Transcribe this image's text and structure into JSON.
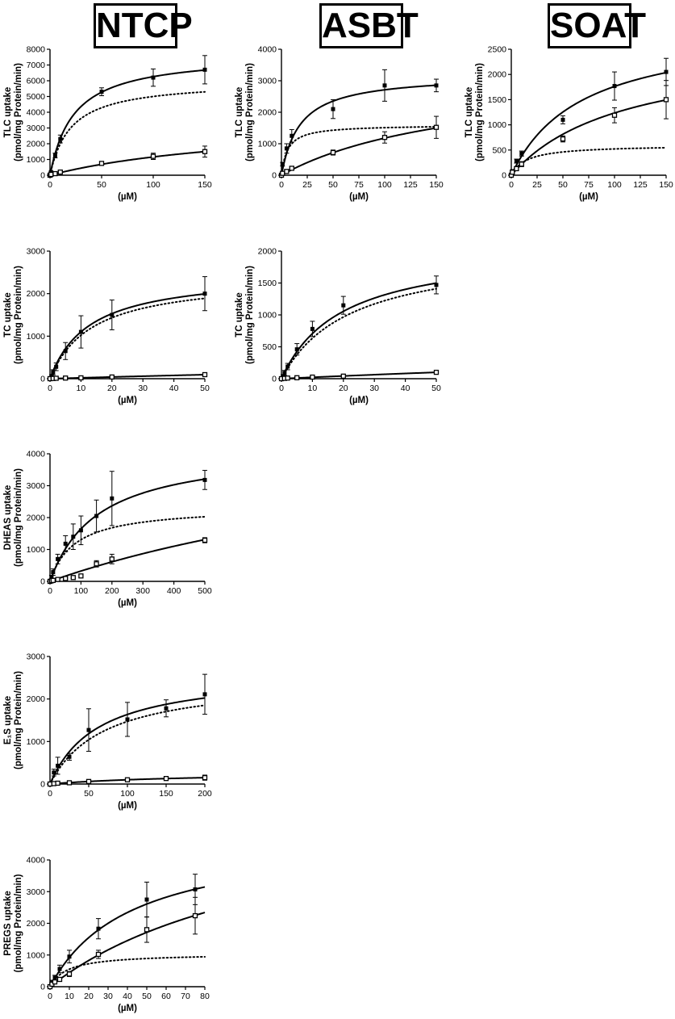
{
  "titles": [
    "NTCP",
    "ASBT",
    "SOAT"
  ],
  "chart_data": [
    {
      "type": "scatter",
      "group": "NTCP",
      "ylabel": "TLC uptake",
      "ylabel2": "(pmol/mg Protein/min)",
      "xlabel": "(µM)",
      "xlim": [
        0,
        150
      ],
      "ylim": [
        0,
        8000
      ],
      "xticks": [
        0,
        50,
        100,
        150
      ],
      "yticks": [
        0,
        1000,
        2000,
        3000,
        4000,
        5000,
        6000,
        7000,
        8000
      ],
      "series": [
        {
          "marker": "filled",
          "x": [
            0,
            1,
            5,
            10,
            50,
            100,
            150
          ],
          "y": [
            0,
            200,
            1250,
            2300,
            5300,
            6200,
            6700
          ],
          "err": [
            0,
            50,
            150,
            250,
            250,
            550,
            900
          ],
          "curve": "solid",
          "fit": {
            "vmax": 7700,
            "km": 23
          }
        },
        {
          "marker": "open",
          "x": [
            0,
            1,
            5,
            10,
            50,
            100,
            150
          ],
          "y": [
            0,
            50,
            100,
            200,
            750,
            1200,
            1500
          ],
          "err": [
            0,
            20,
            40,
            60,
            100,
            200,
            350
          ],
          "curve": "solid",
          "fit": {
            "vmax": 3600,
            "km": 210
          }
        }
      ],
      "dotted_fit": {
        "vmax": 6000,
        "km": 20
      }
    },
    {
      "type": "scatter",
      "group": "ASBT",
      "ylabel": "TLC uptake",
      "ylabel2": "(pmol/mg Protein/min)",
      "xlabel": "(µM)",
      "xlim": [
        0,
        150
      ],
      "ylim": [
        0,
        4000
      ],
      "xticks": [
        0,
        25,
        50,
        75,
        100,
        125,
        150
      ],
      "yticks": [
        0,
        1000,
        2000,
        3000,
        4000
      ],
      "series": [
        {
          "marker": "filled",
          "x": [
            0,
            1,
            5,
            10,
            50,
            100,
            150
          ],
          "y": [
            0,
            350,
            850,
            1250,
            2100,
            2850,
            2850
          ],
          "err": [
            0,
            60,
            150,
            200,
            300,
            500,
            200
          ],
          "curve": "solid",
          "fit": {
            "vmax": 3200,
            "km": 18
          }
        },
        {
          "marker": "open",
          "x": [
            0,
            1,
            5,
            10,
            50,
            100,
            150
          ],
          "y": [
            0,
            60,
            120,
            220,
            720,
            1200,
            1520
          ],
          "err": [
            0,
            20,
            40,
            60,
            80,
            180,
            350
          ],
          "curve": "solid",
          "fit": {
            "vmax": 3300,
            "km": 180
          }
        }
      ],
      "dotted_fit": {
        "vmax": 1600,
        "km": 6
      }
    },
    {
      "type": "scatter",
      "group": "SOAT",
      "ylabel": "TLC uptake",
      "ylabel2": "(pmol/mg Protein/min)",
      "xlabel": "(µM)",
      "xlim": [
        0,
        150
      ],
      "ylim": [
        0,
        2500
      ],
      "xticks": [
        0,
        25,
        50,
        75,
        100,
        125,
        150
      ],
      "yticks": [
        0,
        500,
        1000,
        1500,
        2000,
        2500
      ],
      "series": [
        {
          "marker": "filled",
          "x": [
            0,
            1,
            5,
            10,
            50,
            100,
            150
          ],
          "y": [
            0,
            80,
            280,
            430,
            1100,
            1770,
            2050
          ],
          "err": [
            0,
            20,
            40,
            50,
            80,
            280,
            270
          ],
          "curve": "solid",
          "fit": {
            "vmax": 2960,
            "km": 68
          }
        },
        {
          "marker": "open",
          "x": [
            0,
            1,
            5,
            10,
            50,
            100,
            150
          ],
          "y": [
            0,
            60,
            130,
            220,
            720,
            1190,
            1500
          ],
          "err": [
            0,
            20,
            40,
            50,
            60,
            150,
            380
          ],
          "curve": "solid",
          "fit": {
            "vmax": 2570,
            "km": 108
          }
        }
      ],
      "dotted_fit": {
        "vmax": 600,
        "km": 15
      }
    },
    {
      "type": "scatter",
      "group": "NTCP",
      "ylabel": "TC uptake",
      "ylabel2": "(pmol/mg Protein/min)",
      "xlabel": "(µM)",
      "xlim": [
        0,
        50
      ],
      "ylim": [
        0,
        3000
      ],
      "xticks": [
        0,
        10,
        20,
        30,
        40,
        50
      ],
      "yticks": [
        0,
        1000,
        2000,
        3000
      ],
      "series": [
        {
          "marker": "filled",
          "x": [
            0,
            0.5,
            1,
            2,
            5,
            10,
            20,
            50
          ],
          "y": [
            0,
            60,
            150,
            280,
            650,
            1100,
            1500,
            2000
          ],
          "err": [
            0,
            30,
            60,
            90,
            200,
            380,
            350,
            400
          ],
          "curve": "solid",
          "fit": {
            "vmax": 2500,
            "km": 12.7
          }
        },
        {
          "marker": "open",
          "x": [
            0,
            1,
            2,
            5,
            10,
            20,
            50
          ],
          "y": [
            0,
            5,
            10,
            15,
            20,
            40,
            95
          ],
          "err": [
            0,
            5,
            5,
            5,
            10,
            15,
            20
          ],
          "curve": "solid",
          "fit": {
            "vmax": 1000,
            "km": 480
          }
        }
      ],
      "dotted_fit": {
        "vmax": 2400,
        "km": 13.5
      }
    },
    {
      "type": "scatter",
      "group": "ASBT",
      "ylabel": "TC uptake",
      "ylabel2": "(pmol/mg Protein/min)",
      "xlabel": "(µM)",
      "xlim": [
        0,
        50
      ],
      "ylim": [
        0,
        2000
      ],
      "xticks": [
        0,
        10,
        20,
        30,
        40,
        50
      ],
      "yticks": [
        0,
        500,
        1000,
        1500,
        2000
      ],
      "series": [
        {
          "marker": "filled",
          "x": [
            0,
            0.5,
            1,
            2,
            5,
            10,
            20,
            50
          ],
          "y": [
            0,
            40,
            90,
            190,
            460,
            780,
            1150,
            1470
          ],
          "err": [
            0,
            20,
            40,
            50,
            90,
            120,
            140,
            140
          ],
          "curve": "solid",
          "fit": {
            "vmax": 2080,
            "km": 19.4
          }
        },
        {
          "marker": "open",
          "x": [
            0,
            1,
            2,
            5,
            10,
            20,
            50
          ],
          "y": [
            0,
            5,
            10,
            15,
            25,
            40,
            100
          ],
          "err": [
            0,
            5,
            5,
            5,
            10,
            10,
            15
          ],
          "curve": "solid",
          "fit": {
            "vmax": 1000,
            "km": 450
          }
        }
      ],
      "dotted_fit": {
        "vmax": 2030,
        "km": 22
      }
    },
    {
      "type": "scatter",
      "group": "NTCP",
      "ylabel": "DHEAS uptake",
      "ylabel2": "(pmol/mg Protein/min)",
      "xlabel": "(µM)",
      "xlim": [
        0,
        500
      ],
      "ylim": [
        0,
        4000
      ],
      "xticks": [
        0,
        100,
        200,
        300,
        400,
        500
      ],
      "yticks": [
        0,
        1000,
        2000,
        3000,
        4000
      ],
      "series": [
        {
          "marker": "filled",
          "x": [
            0,
            5,
            10,
            25,
            50,
            75,
            100,
            150,
            200,
            500
          ],
          "y": [
            0,
            130,
            290,
            700,
            1180,
            1400,
            1600,
            2050,
            2600,
            3180
          ],
          "err": [
            0,
            60,
            100,
            150,
            250,
            400,
            450,
            500,
            850,
            300
          ],
          "curve": "solid",
          "fit": {
            "vmax": 4200,
            "km": 155
          }
        },
        {
          "marker": "open",
          "x": [
            0,
            5,
            10,
            25,
            50,
            75,
            100,
            150,
            200,
            500
          ],
          "y": [
            0,
            20,
            30,
            60,
            90,
            120,
            170,
            550,
            700,
            1290
          ],
          "err": [
            0,
            10,
            10,
            20,
            20,
            30,
            40,
            100,
            150,
            80
          ],
          "curve": "solid",
          "fit": {
            "vmax": 5500,
            "km": 1600
          }
        }
      ],
      "dotted_fit": {
        "vmax": 2350,
        "km": 80
      }
    },
    {
      "type": "scatter",
      "group": "NTCP",
      "ylabel": "E₁S uptake",
      "ylabel2": "(pmol/mg Protein/min)",
      "xlabel": "(µM)",
      "xlim": [
        0,
        200
      ],
      "ylim": [
        0,
        3000
      ],
      "xticks": [
        0,
        50,
        100,
        150,
        200
      ],
      "yticks": [
        0,
        1000,
        2000,
        3000
      ],
      "series": [
        {
          "marker": "filled",
          "x": [
            0,
            5,
            10,
            25,
            50,
            100,
            150,
            200
          ],
          "y": [
            0,
            270,
            430,
            640,
            1270,
            1520,
            1780,
            2110
          ],
          "err": [
            0,
            80,
            200,
            80,
            500,
            400,
            200,
            470
          ],
          "curve": "solid",
          "fit": {
            "vmax": 2650,
            "km": 62
          }
        },
        {
          "marker": "open",
          "x": [
            0,
            5,
            10,
            25,
            50,
            100,
            150,
            200
          ],
          "y": [
            0,
            10,
            20,
            30,
            60,
            100,
            130,
            150
          ],
          "err": [
            0,
            5,
            5,
            10,
            15,
            20,
            30,
            60
          ],
          "curve": "solid",
          "fit": {
            "vmax": 300,
            "km": 200
          }
        }
      ],
      "dotted_fit": {
        "vmax": 2500,
        "km": 70
      }
    },
    {
      "type": "scatter",
      "group": "NTCP",
      "ylabel": "PREGS uptake",
      "ylabel2": "(pmol/mg Protein/min)",
      "xlabel": "(µM)",
      "xlim": [
        0,
        80
      ],
      "ylim": [
        0,
        4000
      ],
      "xticks": [
        0,
        10,
        20,
        30,
        40,
        50,
        60,
        70,
        80
      ],
      "yticks": [
        0,
        1000,
        2000,
        3000,
        4000
      ],
      "series": [
        {
          "marker": "filled",
          "x": [
            0,
            1,
            2.5,
            5,
            10,
            25,
            50,
            75
          ],
          "y": [
            0,
            150,
            280,
            560,
            950,
            1830,
            2750,
            3070
          ],
          "err": [
            0,
            50,
            80,
            120,
            200,
            320,
            550,
            480
          ],
          "curve": "solid",
          "fit": {
            "vmax": 4800,
            "km": 42
          }
        },
        {
          "marker": "open",
          "x": [
            0,
            1,
            2.5,
            5,
            10,
            25,
            50,
            75
          ],
          "y": [
            0,
            80,
            150,
            230,
            400,
            1020,
            1800,
            2240
          ],
          "err": [
            0,
            30,
            40,
            60,
            80,
            130,
            400,
            580
          ],
          "curve": "solid",
          "fit": {
            "vmax": 6000,
            "km": 125
          }
        }
      ],
      "dotted_fit": {
        "vmax": 1050,
        "km": 9
      }
    }
  ]
}
